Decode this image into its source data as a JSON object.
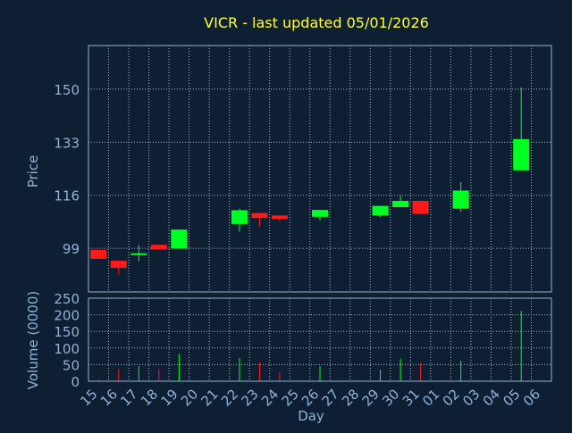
{
  "chart_data": {
    "type": "candlestick",
    "title": "VICR - last updated 05/01/2026",
    "xlabel": "Day",
    "ylabel_price": "Price",
    "ylabel_volume": "Volume (0000)",
    "x_ticks": [
      "15",
      "16",
      "17",
      "18",
      "19",
      "20",
      "21",
      "22",
      "23",
      "24",
      "25",
      "26",
      "27",
      "28",
      "29",
      "30",
      "31",
      "01",
      "02",
      "03",
      "04",
      "05",
      "06"
    ],
    "price_ticks": [
      99,
      116,
      133,
      150
    ],
    "price_range": [
      85,
      164
    ],
    "volume_ticks": [
      0,
      50,
      100,
      150,
      200,
      250
    ],
    "volume_range": [
      0,
      250
    ],
    "grid": true,
    "colors": {
      "background": "#0f1f33",
      "title": "#ffff33",
      "axis_text": "#8fb2d6",
      "grid": "#aab8c8",
      "up": "#00ff22",
      "down": "#ff1a1a"
    },
    "candles": [
      {
        "day": "15",
        "open": 98.5,
        "high": 98.5,
        "low": 95.6,
        "close": 95.6
      },
      {
        "day": "16",
        "open": 95.0,
        "high": 95.0,
        "low": 90.5,
        "close": 92.7
      },
      {
        "day": "17",
        "open": 97.0,
        "high": 100.1,
        "low": 94.8,
        "close": 97.4
      },
      {
        "day": "18",
        "open": 100.1,
        "high": 100.1,
        "low": 98.6,
        "close": 98.6
      },
      {
        "day": "19",
        "open": 98.9,
        "high": 105.0,
        "low": 98.9,
        "close": 105.0
      },
      {
        "day": "22",
        "open": 106.8,
        "high": 111.7,
        "low": 104.3,
        "close": 111.2
      },
      {
        "day": "23",
        "open": 110.3,
        "high": 110.3,
        "low": 105.8,
        "close": 108.7
      },
      {
        "day": "24",
        "open": 109.5,
        "high": 109.5,
        "low": 107.6,
        "close": 108.4
      },
      {
        "day": "26",
        "open": 109.1,
        "high": 111.3,
        "low": 107.9,
        "close": 111.3
      },
      {
        "day": "29",
        "open": 109.5,
        "high": 112.6,
        "low": 109.0,
        "close": 112.6
      },
      {
        "day": "30",
        "open": 112.2,
        "high": 115.9,
        "low": 112.2,
        "close": 114.2
      },
      {
        "day": "31",
        "open": 114.2,
        "high": 114.2,
        "low": 109.8,
        "close": 110.0
      },
      {
        "day": "02",
        "open": 111.7,
        "high": 120.2,
        "low": 110.7,
        "close": 117.5
      },
      {
        "day": "05",
        "open": 124.0,
        "high": 150.5,
        "low": 124.0,
        "close": 134.0
      }
    ],
    "volume": [
      {
        "day": "15",
        "value": 5,
        "dir": "down"
      },
      {
        "day": "16",
        "value": 37,
        "dir": "down"
      },
      {
        "day": "17",
        "value": 45,
        "dir": "up"
      },
      {
        "day": "18",
        "value": 36,
        "dir": "down"
      },
      {
        "day": "19",
        "value": 82,
        "dir": "up"
      },
      {
        "day": "22",
        "value": 70,
        "dir": "up"
      },
      {
        "day": "23",
        "value": 58,
        "dir": "down"
      },
      {
        "day": "24",
        "value": 27,
        "dir": "down"
      },
      {
        "day": "26",
        "value": 45,
        "dir": "up"
      },
      {
        "day": "29",
        "value": 35,
        "dir": "up"
      },
      {
        "day": "30",
        "value": 68,
        "dir": "up"
      },
      {
        "day": "31",
        "value": 55,
        "dir": "down"
      },
      {
        "day": "02",
        "value": 62,
        "dir": "up"
      },
      {
        "day": "05",
        "value": 212,
        "dir": "up"
      }
    ]
  }
}
